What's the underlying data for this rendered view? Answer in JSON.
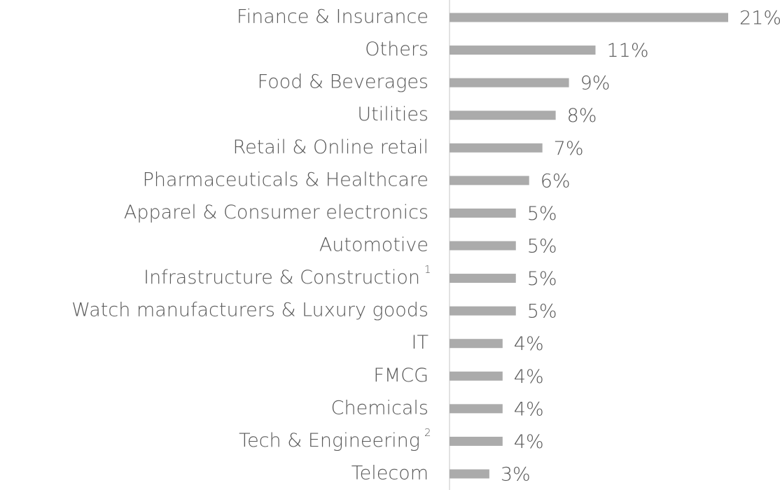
{
  "chart_data": {
    "type": "barh",
    "categories": [
      "Finance & Insurance",
      "Others",
      "Food & Beverages",
      "Utilities",
      "Retail & Online retail",
      "Pharmaceuticals & Healthcare",
      "Apparel & Consumer electronics",
      "Automotive",
      "Infrastructure & Construction",
      "Watch manufacturers & Luxury goods",
      "IT",
      "FMCG",
      "Chemicals",
      "Tech & Engineering",
      "Telecom"
    ],
    "category_notes": {
      "8": "1",
      "13": "2"
    },
    "values": [
      21,
      11,
      9,
      8,
      7,
      6,
      5,
      5,
      5,
      5,
      4,
      4,
      4,
      4,
      3
    ],
    "value_labels": [
      "21%",
      "11%",
      "9%",
      "8%",
      "7%",
      "6%",
      "5%",
      "5%",
      "5%",
      "5%",
      "4%",
      "4%",
      "4%",
      "4%",
      "3%"
    ],
    "color": "#ababab",
    "xlim": [
      0,
      21
    ]
  }
}
